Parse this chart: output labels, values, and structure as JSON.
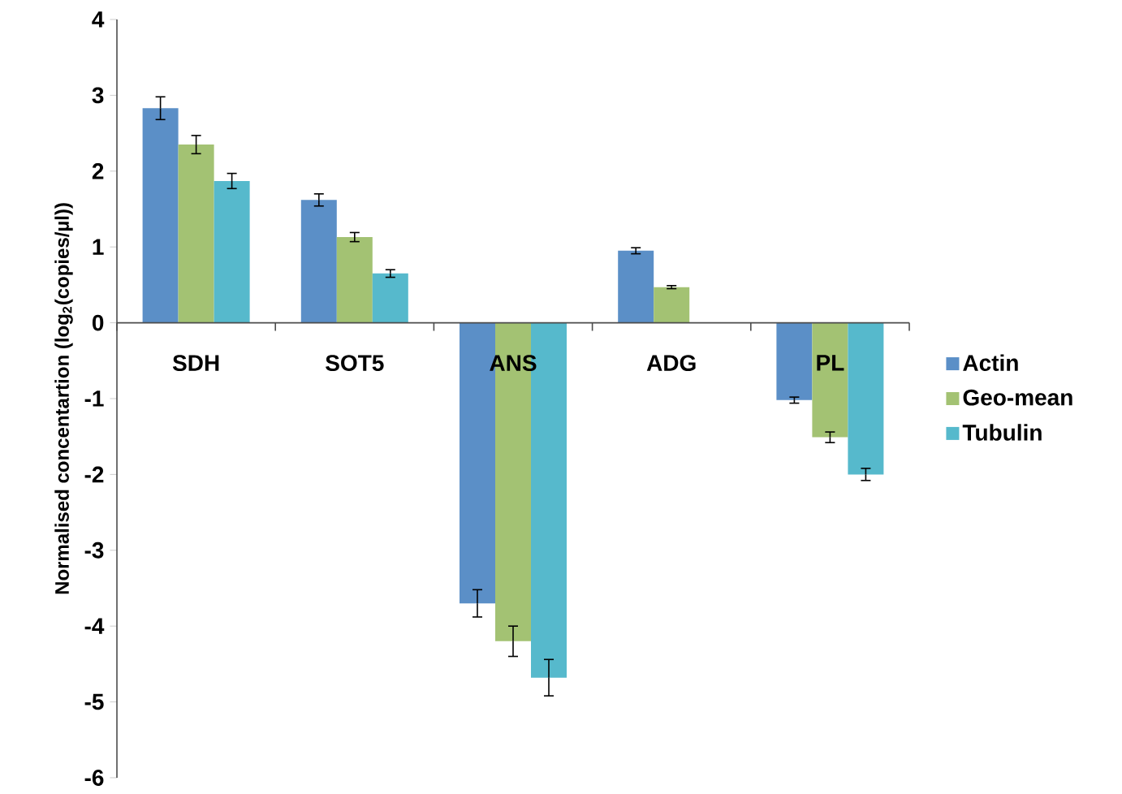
{
  "chart_data": {
    "type": "bar",
    "ylabel": "Normalised concentartion (log$_{2}$(copies/µl))",
    "categories": [
      "SDH",
      "SOT5",
      "ANS",
      "ADG",
      "PL"
    ],
    "series": [
      {
        "name": "Actin",
        "color": "#5b8fc7",
        "values": [
          2.83,
          1.62,
          -3.7,
          0.95,
          -1.02
        ],
        "errors": [
          0.15,
          0.08,
          0.18,
          0.04,
          0.04
        ]
      },
      {
        "name": "Geo-mean",
        "color": "#a3c273",
        "values": [
          2.35,
          1.13,
          -4.2,
          0.47,
          -1.51
        ],
        "errors": [
          0.12,
          0.06,
          0.2,
          0.02,
          0.07
        ]
      },
      {
        "name": "Tubulin",
        "color": "#56b9cc",
        "values": [
          1.87,
          0.65,
          -4.68,
          0.0,
          -2.0
        ],
        "errors": [
          0.1,
          0.05,
          0.24,
          null,
          0.08
        ]
      }
    ],
    "ylim": [
      -6,
      4
    ],
    "yticks": [
      -6,
      -5,
      -4,
      -3,
      -2,
      -1,
      0,
      1,
      2,
      3,
      4
    ],
    "grid": false,
    "legend": "right"
  }
}
